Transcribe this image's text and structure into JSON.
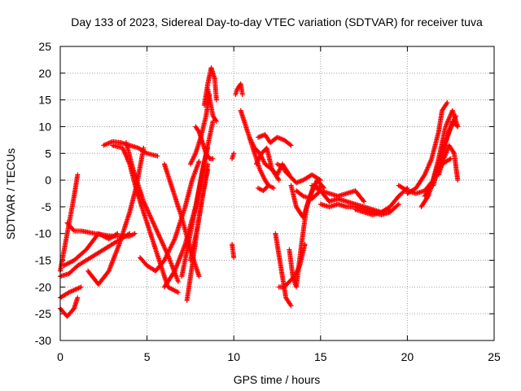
{
  "chart_data": {
    "type": "scatter",
    "title": "Day 133 of 2023, Sidereal Day-to-day VTEC variation (SDTVAR) for receiver tuva",
    "xlabel": "GPS time / hours",
    "ylabel": "SDTVAR / TECUs",
    "xlim": [
      0,
      25
    ],
    "ylim": [
      -30,
      25
    ],
    "xticks": [
      0,
      5,
      10,
      15,
      20,
      25
    ],
    "yticks": [
      -30,
      -25,
      -20,
      -15,
      -10,
      -5,
      0,
      5,
      10,
      15,
      20,
      25
    ],
    "grid": true,
    "legend": "none",
    "marker": "+",
    "color": "#ff0000",
    "series": [
      {
        "name": "s1",
        "x": [
          0.0,
          0.4,
          0.8,
          1.0
        ],
        "y": [
          -17,
          -10,
          -3,
          1
        ]
      },
      {
        "name": "s2",
        "x": [
          0.0,
          0.4,
          0.8,
          1.0
        ],
        "y": [
          -24,
          -25.5,
          -24,
          -22
        ]
      },
      {
        "name": "s3",
        "x": [
          0.0,
          0.5,
          1.2
        ],
        "y": [
          -22,
          -21,
          -20
        ]
      },
      {
        "name": "s4",
        "x": [
          0.4,
          0.8,
          1.2,
          2.0,
          3.0,
          4.0,
          4.3
        ],
        "y": [
          -8,
          -9.5,
          -9.5,
          -10,
          -10.5,
          -10.5,
          -10
        ]
      },
      {
        "name": "s5",
        "x": [
          0.0,
          0.5,
          1.0,
          2.0,
          3.0,
          4.0
        ],
        "y": [
          -18,
          -17.5,
          -16,
          -14,
          -12,
          -10
        ]
      },
      {
        "name": "s6",
        "x": [
          0.2,
          0.8,
          1.5,
          2.2,
          2.8,
          3.3
        ],
        "y": [
          -16,
          -15,
          -13,
          -10,
          -11,
          -10
        ]
      },
      {
        "name": "s7",
        "x": [
          1.6,
          2.2,
          2.8,
          3.4,
          4.0,
          4.4,
          4.8
        ],
        "y": [
          -17,
          -19.5,
          -17,
          -12,
          -6,
          -1,
          6
        ]
      },
      {
        "name": "s8",
        "x": [
          2.5,
          3.0,
          3.5,
          4.0,
          4.5,
          5.0,
          5.6
        ],
        "y": [
          6.5,
          7.2,
          7,
          6.5,
          6,
          5,
          4.5
        ]
      },
      {
        "name": "s9",
        "x": [
          3.0,
          3.6,
          4.0,
          4.4,
          5.0,
          5.6,
          6.2,
          6.8
        ],
        "y": [
          6.5,
          6,
          3,
          -2,
          -8,
          -14,
          -20,
          -21
        ]
      },
      {
        "name": "s10",
        "x": [
          3.8,
          4.2,
          4.8,
          5.5,
          6.2,
          6.8
        ],
        "y": [
          7,
          2,
          -4,
          -9,
          -14,
          -19
        ]
      },
      {
        "name": "s11",
        "x": [
          4.6,
          5.0,
          5.5,
          6.0,
          6.6,
          7.2,
          7.6,
          8.0
        ],
        "y": [
          -14.5,
          -16,
          -17,
          -15,
          -11,
          -5,
          0,
          3.5
        ]
      },
      {
        "name": "s12",
        "x": [
          6.0,
          6.5,
          7.0,
          7.5,
          8.0
        ],
        "y": [
          3,
          -2,
          -7,
          -13,
          -18
        ]
      },
      {
        "name": "s13",
        "x": [
          6.0,
          6.6,
          7.2,
          7.8,
          8.2,
          8.5
        ],
        "y": [
          -20,
          -17,
          -12,
          -5,
          2,
          6
        ]
      },
      {
        "name": "s14",
        "x": [
          7.0,
          7.5,
          8.0,
          8.4,
          8.8
        ],
        "y": [
          -18,
          -10,
          -2,
          5,
          11
        ]
      },
      {
        "name": "s15",
        "x": [
          7.3,
          7.6,
          7.9,
          8.2,
          8.5
        ],
        "y": [
          -22.5,
          -16,
          -9,
          -3,
          2
        ]
      },
      {
        "name": "s16",
        "x": [
          7.5,
          7.9,
          8.2,
          8.5
        ],
        "y": [
          -15,
          -9,
          -3,
          3
        ]
      },
      {
        "name": "s17",
        "x": [
          7.5,
          7.8,
          8.1,
          8.4,
          8.6
        ],
        "y": [
          3,
          5,
          8,
          12,
          16
        ]
      },
      {
        "name": "s18",
        "x": [
          8.3,
          8.5,
          8.7,
          8.9,
          9.0
        ],
        "y": [
          14,
          18,
          21,
          19,
          15
        ]
      },
      {
        "name": "s19",
        "x": [
          8.5,
          8.8,
          9.0
        ],
        "y": [
          17,
          12,
          11
        ]
      },
      {
        "name": "s20",
        "x": [
          7.8,
          8.0,
          8.2,
          8.4,
          8.6,
          8.8
        ],
        "y": [
          10,
          9,
          7,
          5,
          4,
          4
        ]
      },
      {
        "name": "s21",
        "x": [
          9.9,
          10.0
        ],
        "y": [
          4,
          5
        ]
      },
      {
        "name": "s22",
        "x": [
          9.9,
          10.0
        ],
        "y": [
          -12,
          -14.5
        ]
      },
      {
        "name": "s23",
        "x": [
          10.1,
          10.2,
          10.4,
          10.5
        ],
        "y": [
          16,
          17,
          18,
          16
        ]
      },
      {
        "name": "s24",
        "x": [
          10.4,
          10.6,
          10.9,
          11.2,
          11.5,
          11.8,
          12.0
        ],
        "y": [
          13,
          11,
          8,
          5,
          2,
          0,
          -1
        ]
      },
      {
        "name": "s25",
        "x": [
          10.9,
          11.2,
          11.5,
          11.8,
          12.2,
          12.6
        ],
        "y": [
          8,
          6,
          5,
          3,
          2,
          0
        ]
      },
      {
        "name": "s26",
        "x": [
          11.4,
          11.8,
          12.1,
          12.5,
          12.9,
          13.3
        ],
        "y": [
          8,
          8.5,
          7,
          8,
          7.5,
          6.5
        ]
      },
      {
        "name": "s27",
        "x": [
          11.3,
          11.6,
          11.9,
          12.2,
          12.5,
          12.8,
          13.2
        ],
        "y": [
          3,
          5,
          6,
          2,
          1,
          3,
          1
        ]
      },
      {
        "name": "s28",
        "x": [
          12.5,
          12.8,
          13.0,
          13.3,
          13.6,
          14.0,
          14.5,
          15.0
        ],
        "y": [
          3,
          2.5,
          1.5,
          0.5,
          -0.5,
          0,
          1,
          0
        ]
      },
      {
        "name": "s29",
        "x": [
          11.4,
          11.7,
          12.0,
          12.3
        ],
        "y": [
          -1.5,
          -2,
          -1,
          -1.5
        ]
      },
      {
        "name": "s30",
        "x": [
          12.4,
          12.6,
          12.8,
          13.0,
          13.3
        ],
        "y": [
          -10,
          -14,
          -18,
          -22,
          -23.5
        ]
      },
      {
        "name": "s31",
        "x": [
          12.6,
          12.9,
          13.2,
          13.5,
          13.8,
          14.1
        ],
        "y": [
          -20,
          -20,
          -19,
          -18,
          -16,
          -12
        ]
      },
      {
        "name": "s32",
        "x": [
          13.2,
          13.4,
          13.6,
          13.9,
          14.2,
          14.6,
          15.0
        ],
        "y": [
          -13,
          -18,
          -20,
          -12,
          -5,
          -1,
          -1.5
        ]
      },
      {
        "name": "s33",
        "x": [
          13.3,
          13.6,
          14.0,
          14.4,
          14.8,
          15.2
        ],
        "y": [
          -1,
          -5,
          -7,
          -3,
          0,
          -1.5
        ]
      },
      {
        "name": "s34",
        "x": [
          13.6,
          14.0,
          14.5,
          15.0,
          15.5,
          16.0,
          16.5,
          17.0,
          17.5
        ],
        "y": [
          -2,
          -3,
          -3.5,
          -2,
          -2.5,
          -3,
          -2.5,
          -2,
          -4
        ]
      },
      {
        "name": "s35",
        "x": [
          14.5,
          15.0,
          15.5,
          16.0,
          16.5,
          17.0,
          17.5,
          18.0,
          18.5,
          19.0
        ],
        "y": [
          -1,
          -2,
          -4,
          -3.5,
          -4,
          -4.5,
          -5,
          -5.5,
          -6,
          -5.5
        ]
      },
      {
        "name": "s36",
        "x": [
          15.0,
          15.5,
          16.0,
          16.5,
          17.0,
          17.5,
          18.0,
          18.5,
          19.0,
          19.5
        ],
        "y": [
          -4.5,
          -5,
          -4.5,
          -5,
          -5,
          -5.5,
          -6,
          -6.5,
          -6,
          -4.5
        ]
      },
      {
        "name": "s37",
        "x": [
          17.0,
          17.5,
          18.0,
          18.5,
          19.0,
          19.5,
          20.0
        ],
        "y": [
          -5.5,
          -6,
          -6.5,
          -6,
          -5,
          -3,
          -1.5
        ]
      },
      {
        "name": "s38",
        "x": [
          19.5,
          20.0,
          20.5,
          21.0,
          21.5,
          22.0,
          22.5
        ],
        "y": [
          -1,
          -2,
          -2.5,
          -2,
          0,
          3,
          4
        ]
      },
      {
        "name": "s39",
        "x": [
          20.0,
          20.5,
          21.0,
          21.4,
          21.8,
          22.0,
          22.3
        ],
        "y": [
          -2.5,
          -1.5,
          1,
          4,
          9,
          13,
          14.5
        ]
      },
      {
        "name": "s40",
        "x": [
          20.8,
          21.2,
          21.6,
          22.0,
          22.4,
          22.8
        ],
        "y": [
          -5,
          -3,
          1,
          5,
          9,
          12
        ]
      },
      {
        "name": "s41",
        "x": [
          21.0,
          21.4,
          21.8,
          22.2,
          22.6,
          22.9
        ],
        "y": [
          -3,
          -1,
          4,
          10,
          13,
          10
        ]
      },
      {
        "name": "s42",
        "x": [
          21.5,
          21.9,
          22.3,
          22.6,
          22.9
        ],
        "y": [
          -1,
          4,
          8,
          11,
          10
        ]
      },
      {
        "name": "s43",
        "x": [
          21.8,
          22.1,
          22.4,
          22.7,
          22.9
        ],
        "y": [
          1,
          4,
          6.5,
          5,
          0
        ]
      }
    ]
  }
}
